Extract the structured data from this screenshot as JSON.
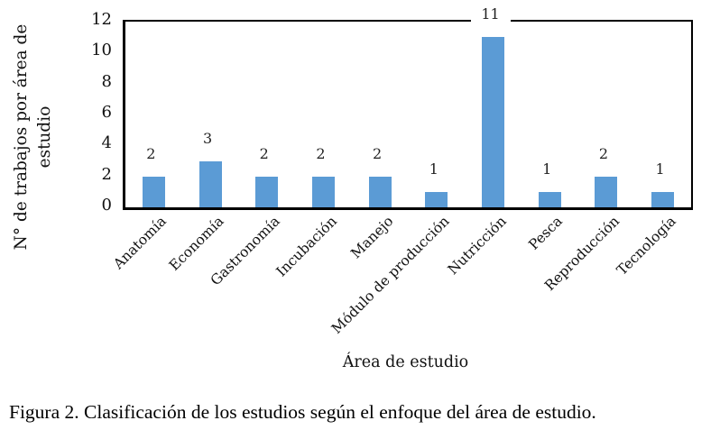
{
  "figure": {
    "caption": "Figura 2. Clasificación de los estudios según el enfoque del área de estudio."
  },
  "chart_data": {
    "type": "bar",
    "title": "",
    "categories": [
      "Anatomía",
      "Economía",
      "Gastronomía",
      "Incubación",
      "Manejo",
      "Módulo de producción",
      "Nutricción",
      "Pesca",
      "Reproducción",
      "Tecnología"
    ],
    "values": [
      2,
      3,
      2,
      2,
      2,
      1,
      11,
      1,
      2,
      1
    ],
    "xlabel": "Área de estudio",
    "ylabel": "N° de trabajos por área de estudio",
    "ylabel_lines": [
      "N° de trabajos por área de",
      "estudio"
    ],
    "ylim": [
      0,
      12
    ],
    "yticks": [
      0,
      2,
      4,
      6,
      8,
      10,
      12
    ],
    "bar_color": "#5B9BD5",
    "grid": false,
    "legend": "none",
    "data_labels": true,
    "x_tick_rotation_deg": -45
  }
}
